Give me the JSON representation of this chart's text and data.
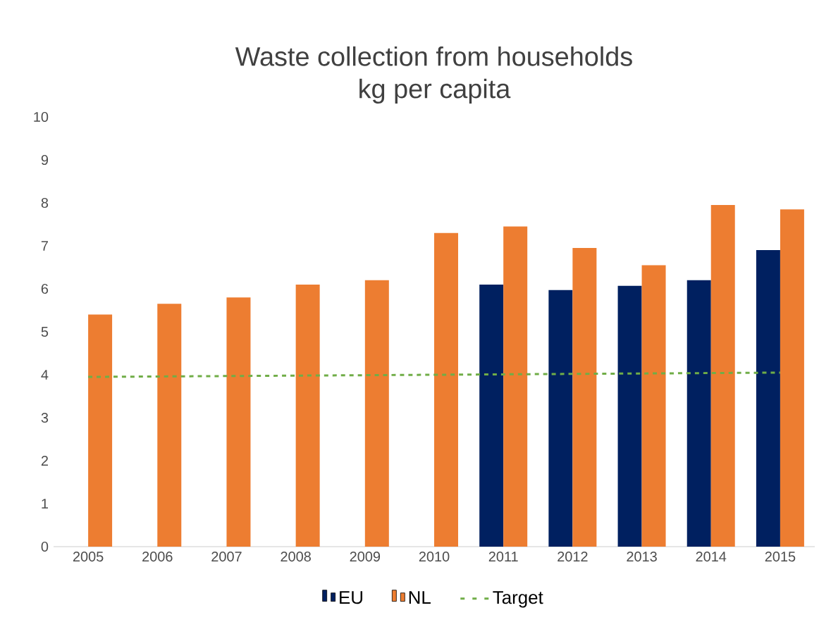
{
  "chart_data": {
    "type": "bar",
    "title": "Waste collection from households",
    "subtitle": "kg per capita",
    "categories": [
      "2005",
      "2006",
      "2007",
      "2008",
      "2009",
      "2010",
      "2011",
      "2012",
      "2013",
      "2014",
      "2015"
    ],
    "series": [
      {
        "name": "EU",
        "color": "#002060",
        "values": [
          null,
          null,
          null,
          null,
          null,
          null,
          6.1,
          5.97,
          6.07,
          6.2,
          6.9
        ]
      },
      {
        "name": "NL",
        "color": "#ed7d31",
        "values": [
          5.4,
          5.65,
          5.8,
          6.1,
          6.2,
          7.3,
          7.45,
          6.95,
          6.55,
          7.95,
          7.85
        ]
      },
      {
        "name": "Target",
        "type": "line",
        "line_style": "dashed",
        "color": "#70ad47",
        "values": [
          3.95,
          3.96,
          3.97,
          3.98,
          3.99,
          4.0,
          4.01,
          4.02,
          4.03,
          4.04,
          4.05
        ]
      }
    ],
    "ylim": [
      0,
      10
    ],
    "yticks": [
      0,
      1,
      2,
      3,
      4,
      5,
      6,
      7,
      8,
      9,
      10
    ],
    "grid": false,
    "legend": "bottom"
  }
}
